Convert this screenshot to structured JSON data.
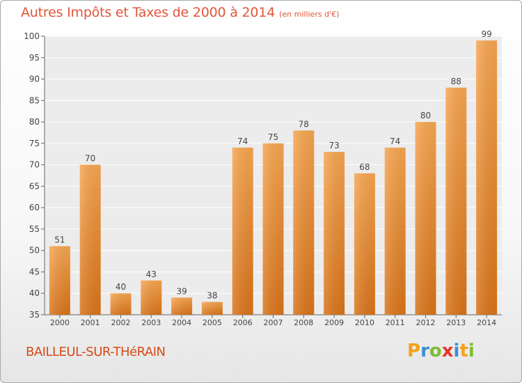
{
  "chart_data": {
    "type": "bar",
    "title": "Autres Impôts et Taxes de 2000 à 2014",
    "subtitle": "(en milliers d'€)",
    "categories": [
      "2000",
      "2001",
      "2002",
      "2003",
      "2004",
      "2005",
      "2006",
      "2007",
      "2008",
      "2009",
      "2010",
      "2011",
      "2012",
      "2013",
      "2014"
    ],
    "values": [
      51,
      70,
      40,
      43,
      39,
      38,
      74,
      75,
      78,
      73,
      68,
      74,
      80,
      88,
      99
    ],
    "ylim": [
      35,
      100
    ],
    "yticks": [
      35,
      40,
      45,
      50,
      55,
      60,
      65,
      70,
      75,
      80,
      85,
      90,
      95,
      100
    ],
    "xlabel": "",
    "ylabel": "",
    "grid": true,
    "bar_color": "#f0902e"
  },
  "footer": {
    "place": "BAILLEUL-SUR-THéRAIN",
    "logo_letters": [
      "P",
      "r",
      "o",
      "x",
      "i",
      "t",
      "i"
    ],
    "logo_colors": [
      "#f5a21a",
      "#3a8fd6",
      "#7cbd2e",
      "#e8332a",
      "#3a8fd6",
      "#f5a21a",
      "#7cbd2e"
    ]
  },
  "colors": {
    "title": "#e0563a",
    "place": "#d64a1a"
  }
}
